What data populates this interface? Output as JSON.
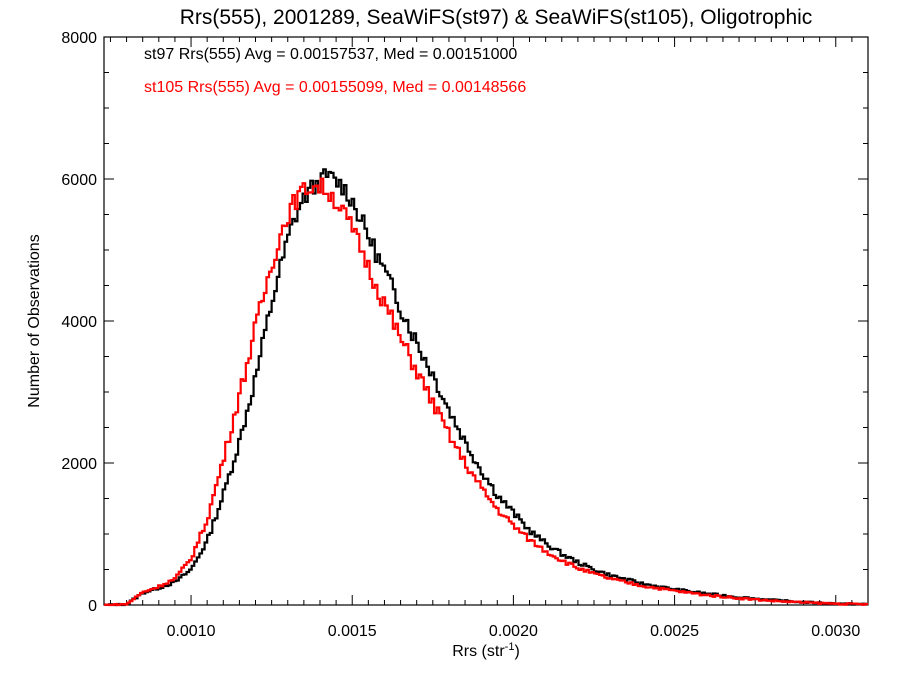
{
  "chart_data": {
    "type": "line",
    "title": "Rrs(555), 2001289, SeaWiFS(st97) & SeaWiFS(st105), Oligotrophic",
    "xlabel": "Rrs (str",
    "xlabel_sup": "-1",
    "xlabel_suffix": ")",
    "ylabel": "Number of Observations",
    "xlim": [
      0.00073,
      0.0031
    ],
    "ylim": [
      0,
      8000
    ],
    "grid": false,
    "x_ticks": [
      {
        "value": 0.001,
        "label": "0.0010"
      },
      {
        "value": 0.0015,
        "label": "0.0015"
      },
      {
        "value": 0.002,
        "label": "0.0020"
      },
      {
        "value": 0.0025,
        "label": "0.0025"
      },
      {
        "value": 0.003,
        "label": "0.0030"
      }
    ],
    "y_ticks": [
      {
        "value": 0,
        "label": "0"
      },
      {
        "value": 2000,
        "label": "2000"
      },
      {
        "value": 4000,
        "label": "4000"
      },
      {
        "value": 6000,
        "label": "6000"
      },
      {
        "value": 8000,
        "label": "8000"
      }
    ],
    "legend_placement": "top-left",
    "series": [
      {
        "name": "st97 Rrs(555) Avg = 0.00157537, Med = 0.00151000",
        "color": "#000000",
        "x": [
          0.00073,
          0.0008,
          0.00085,
          0.0009,
          0.00095,
          0.001,
          0.00105,
          0.0011,
          0.00115,
          0.0012,
          0.00125,
          0.00128,
          0.00131,
          0.00134,
          0.00137,
          0.0014,
          0.00142,
          0.00144,
          0.00147,
          0.0015,
          0.00153,
          0.00156,
          0.0016,
          0.00165,
          0.0017,
          0.00175,
          0.0018,
          0.00185,
          0.0019,
          0.00195,
          0.002,
          0.00205,
          0.0021,
          0.00215,
          0.0022,
          0.00225,
          0.0023,
          0.0024,
          0.0025,
          0.0026,
          0.0027,
          0.0028,
          0.0029,
          0.003,
          0.0031
        ],
        "values": [
          0,
          10,
          170,
          240,
          320,
          500,
          900,
          1550,
          2300,
          3200,
          4250,
          4800,
          5300,
          5650,
          5850,
          5950,
          6050,
          6000,
          5900,
          5700,
          5400,
          5100,
          4700,
          4200,
          3700,
          3250,
          2750,
          2300,
          1900,
          1550,
          1300,
          1050,
          870,
          720,
          600,
          500,
          420,
          300,
          220,
          160,
          110,
          70,
          40,
          20,
          10
        ]
      },
      {
        "name": "st105 Rrs(555) Avg = 0.00155099, Med = 0.00148566",
        "color": "#ff0000",
        "x": [
          0.00073,
          0.0008,
          0.00085,
          0.0009,
          0.00095,
          0.001,
          0.00105,
          0.0011,
          0.00115,
          0.0012,
          0.00125,
          0.00128,
          0.00131,
          0.00134,
          0.00137,
          0.0014,
          0.00142,
          0.00144,
          0.00147,
          0.0015,
          0.00153,
          0.00156,
          0.0016,
          0.00165,
          0.0017,
          0.00175,
          0.0018,
          0.00185,
          0.0019,
          0.00195,
          0.002,
          0.00205,
          0.0021,
          0.00215,
          0.0022,
          0.00225,
          0.0023,
          0.0024,
          0.0025,
          0.0026,
          0.0027,
          0.0028,
          0.0029,
          0.003,
          0.0031
        ],
        "values": [
          0,
          10,
          180,
          260,
          370,
          650,
          1200,
          2050,
          2950,
          3900,
          4800,
          5250,
          5600,
          5800,
          5900,
          5900,
          5850,
          5750,
          5550,
          5300,
          5000,
          4650,
          4250,
          3750,
          3300,
          2850,
          2400,
          2000,
          1650,
          1350,
          1120,
          920,
          760,
          630,
          520,
          440,
          370,
          270,
          200,
          140,
          95,
          60,
          35,
          18,
          8
        ]
      }
    ]
  }
}
